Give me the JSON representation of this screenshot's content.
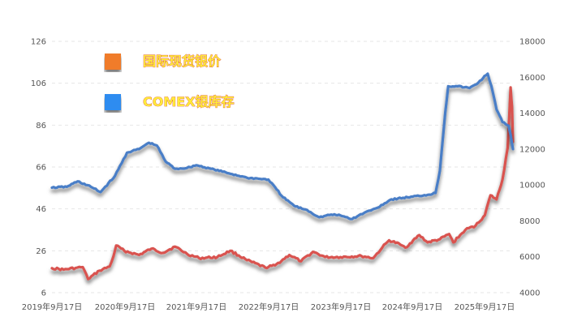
{
  "chart_data": {
    "type": "line",
    "x_ticks": [
      "2019年9月17日",
      "2020年9月17日",
      "2021年9月17日",
      "2022年9月17日",
      "2023年9月17日",
      "2024年9月17日",
      "2025年9月17日"
    ],
    "left_axis": {
      "ticks": [
        126,
        106,
        86,
        66,
        46,
        26,
        6
      ],
      "ylim": [
        6,
        126
      ]
    },
    "right_axis": {
      "ticks": [
        18000,
        16000,
        14000,
        12000,
        10000,
        8000,
        6000,
        4000
      ],
      "ylim": [
        4000,
        18000
      ]
    },
    "grid": true,
    "legend_position": "top-left",
    "series": [
      {
        "name": "国际现货银价",
        "axis": "left",
        "color": "#d9534f",
        "legend_color": "#f07c2b",
        "points": [
          [
            "2019-09-17",
            17.7
          ],
          [
            "2019-11-15",
            17.0
          ],
          [
            "2020-01-15",
            17.8
          ],
          [
            "2020-02-20",
            18.2
          ],
          [
            "2020-03-18",
            12.5
          ],
          [
            "2020-05-15",
            16.5
          ],
          [
            "2020-07-05",
            18.5
          ],
          [
            "2020-07-25",
            23.5
          ],
          [
            "2020-08-07",
            28.5
          ],
          [
            "2020-09-17",
            26.0
          ],
          [
            "2020-12-01",
            24.0
          ],
          [
            "2021-02-01",
            27.0
          ],
          [
            "2021-04-01",
            25.0
          ],
          [
            "2021-06-01",
            28.0
          ],
          [
            "2021-08-01",
            24.5
          ],
          [
            "2021-10-01",
            22.5
          ],
          [
            "2022-01-01",
            23.0
          ],
          [
            "2022-03-08",
            26.0
          ],
          [
            "2022-06-01",
            21.5
          ],
          [
            "2022-09-01",
            18.0
          ],
          [
            "2022-10-20",
            19.0
          ],
          [
            "2023-01-01",
            24.0
          ],
          [
            "2023-03-01",
            21.0
          ],
          [
            "2023-05-01",
            25.5
          ],
          [
            "2023-07-01",
            23.0
          ],
          [
            "2023-09-17",
            23.0
          ],
          [
            "2024-01-01",
            23.5
          ],
          [
            "2024-03-01",
            22.5
          ],
          [
            "2024-04-15",
            27.5
          ],
          [
            "2024-05-20",
            31.0
          ],
          [
            "2024-07-15",
            29.0
          ],
          [
            "2024-08-10",
            27.5
          ],
          [
            "2024-10-20",
            33.5
          ],
          [
            "2024-12-01",
            30.0
          ],
          [
            "2025-02-01",
            31.5
          ],
          [
            "2025-03-20",
            34.0
          ],
          [
            "2025-04-10",
            30.0
          ],
          [
            "2025-06-10",
            36.0
          ],
          [
            "2025-08-01",
            38.0
          ],
          [
            "2025-09-17",
            43.0
          ],
          [
            "2025-10-15",
            52.5
          ],
          [
            "2025-11-15",
            50.5
          ],
          [
            "2025-12-15",
            60.0
          ],
          [
            "2026-01-10",
            75.0
          ],
          [
            "2026-01-25",
            104.0
          ],
          [
            "2026-02-01",
            95.0
          ],
          [
            "2026-02-06",
            78.0
          ]
        ]
      },
      {
        "name": "COMEX银库存",
        "axis": "right",
        "color": "#4a7ec7",
        "legend_color": "#2f8cf0",
        "points": [
          [
            "2019-09-17",
            9850
          ],
          [
            "2019-12-01",
            9900
          ],
          [
            "2020-01-25",
            10200
          ],
          [
            "2020-04-01",
            9900
          ],
          [
            "2020-05-20",
            9600
          ],
          [
            "2020-08-01",
            10500
          ],
          [
            "2020-10-01",
            11800
          ],
          [
            "2020-12-01",
            12000
          ],
          [
            "2021-01-20",
            12350
          ],
          [
            "2021-03-01",
            12200
          ],
          [
            "2021-04-15",
            11300
          ],
          [
            "2021-06-01",
            10900
          ],
          [
            "2021-08-01",
            10950
          ],
          [
            "2021-09-17",
            11100
          ],
          [
            "2021-12-01",
            10900
          ],
          [
            "2022-03-01",
            10650
          ],
          [
            "2022-06-01",
            10400
          ],
          [
            "2022-09-17",
            10300
          ],
          [
            "2022-12-01",
            9300
          ],
          [
            "2023-02-01",
            8800
          ],
          [
            "2023-04-01",
            8600
          ],
          [
            "2023-06-01",
            8200
          ],
          [
            "2023-08-01",
            8350
          ],
          [
            "2023-09-17",
            8300
          ],
          [
            "2023-11-15",
            8100
          ],
          [
            "2024-01-15",
            8450
          ],
          [
            "2024-03-15",
            8700
          ],
          [
            "2024-06-01",
            9200
          ],
          [
            "2024-09-17",
            9350
          ],
          [
            "2024-12-01",
            9450
          ],
          [
            "2025-01-10",
            9550
          ],
          [
            "2025-02-01",
            10800
          ],
          [
            "2025-02-28",
            14000
          ],
          [
            "2025-03-15",
            15500
          ],
          [
            "2025-05-01",
            15500
          ],
          [
            "2025-07-01",
            15400
          ],
          [
            "2025-08-15",
            15700
          ],
          [
            "2025-10-01",
            16200
          ],
          [
            "2025-10-20",
            15500
          ],
          [
            "2025-11-15",
            14200
          ],
          [
            "2025-12-15",
            13500
          ],
          [
            "2026-01-15",
            13300
          ],
          [
            "2026-01-25",
            12800
          ],
          [
            "2026-02-06",
            12000
          ]
        ]
      }
    ]
  }
}
